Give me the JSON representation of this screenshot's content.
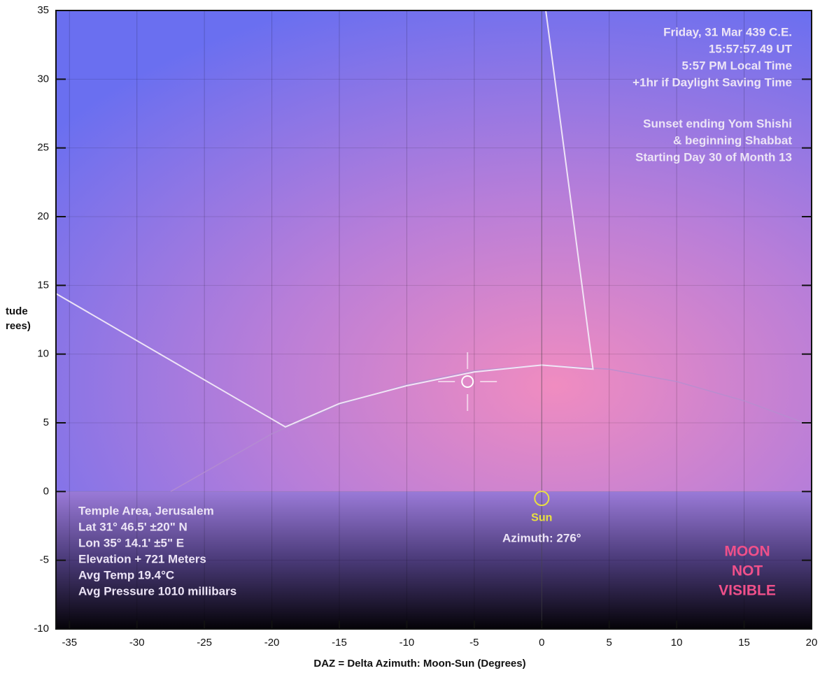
{
  "chart_data": {
    "type": "sky",
    "x_label": "DAZ = Delta Azimuth: Moon-Sun (Degrees)",
    "y_label": [
      "tude",
      "rees)"
    ],
    "xlim": [
      -36,
      20
    ],
    "ylim": [
      -10,
      35
    ],
    "xticks": [
      -35,
      -30,
      -25,
      -20,
      -15,
      -10,
      -5,
      0,
      5,
      10,
      15,
      20
    ],
    "yticks": [
      -10,
      -5,
      0,
      5,
      10,
      15,
      20,
      25,
      30,
      35
    ],
    "grid": true,
    "series": [
      {
        "color": "#b48fd0",
        "x": [
          -27.5,
          -20,
          -15,
          -10,
          -5,
          0,
          5,
          10,
          15,
          20
        ],
        "values": [
          0,
          4.2,
          6.3,
          7.8,
          8.8,
          9.2,
          8.9,
          8.0,
          6.6,
          4.8
        ]
      },
      {
        "color": "#f2eaf8",
        "x": [
          -36,
          -19,
          -15,
          -10,
          -5,
          0,
          3.8,
          0.3
        ],
        "values": [
          14.4,
          4.7,
          6.4,
          7.7,
          8.7,
          9.2,
          8.9,
          35
        ]
      }
    ],
    "moon": {
      "x": -5.5,
      "y": 8,
      "color": "#ffffff"
    },
    "sun": {
      "x": 0,
      "y": -0.5,
      "color": "#e8e040",
      "label": "Sun",
      "note": "Azimuth: 276°"
    },
    "date_info": [
      "Friday, 31 Mar 439 C.E.",
      "15:57:57.49 UT",
      "5:57 PM Local Time",
      "+1hr if Daylight Saving Time"
    ],
    "event_info": [
      "Sunset ending Yom Shishi",
      "& beginning Shabbat",
      "Starting Day 30 of Month 13"
    ],
    "location_info": [
      "Temple Area, Jerusalem",
      "Lat 31° 46.5' ±20\" N",
      "Lon 35° 14.1' ±5\" E",
      "Elevation + 721 Meters",
      "Avg Temp 19.4°C",
      "Avg Pressure 1010 millibars"
    ],
    "visibility": [
      "MOON",
      "NOT",
      "VISIBLE"
    ],
    "visibility_color": "#f0508a"
  }
}
